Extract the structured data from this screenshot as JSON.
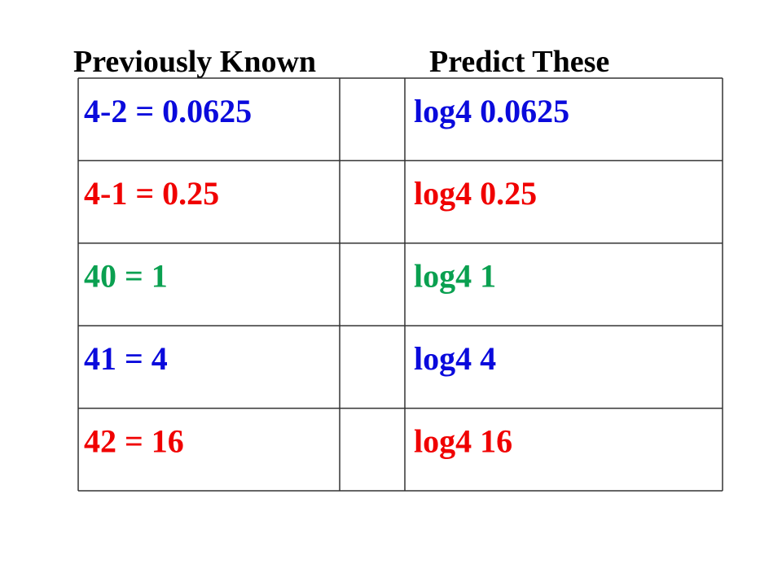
{
  "headers": [
    "Previously Known",
    "Predict These"
  ],
  "table": {
    "rows": [
      {
        "known": "4-2 = 0.0625",
        "predict": "log4 0.0625",
        "color": "#0a0adc"
      },
      {
        "known": "4-1 = 0.25",
        "predict": "log4 0.25",
        "color": "#f00000"
      },
      {
        "known": "40 = 1",
        "predict": "log4 1",
        "color": "#0aa050"
      },
      {
        "known": "41 = 4",
        "predict": "log4 4",
        "color": "#0a0adc"
      },
      {
        "known": "42 = 16",
        "predict": "log4 16",
        "color": "#f00000"
      }
    ]
  }
}
